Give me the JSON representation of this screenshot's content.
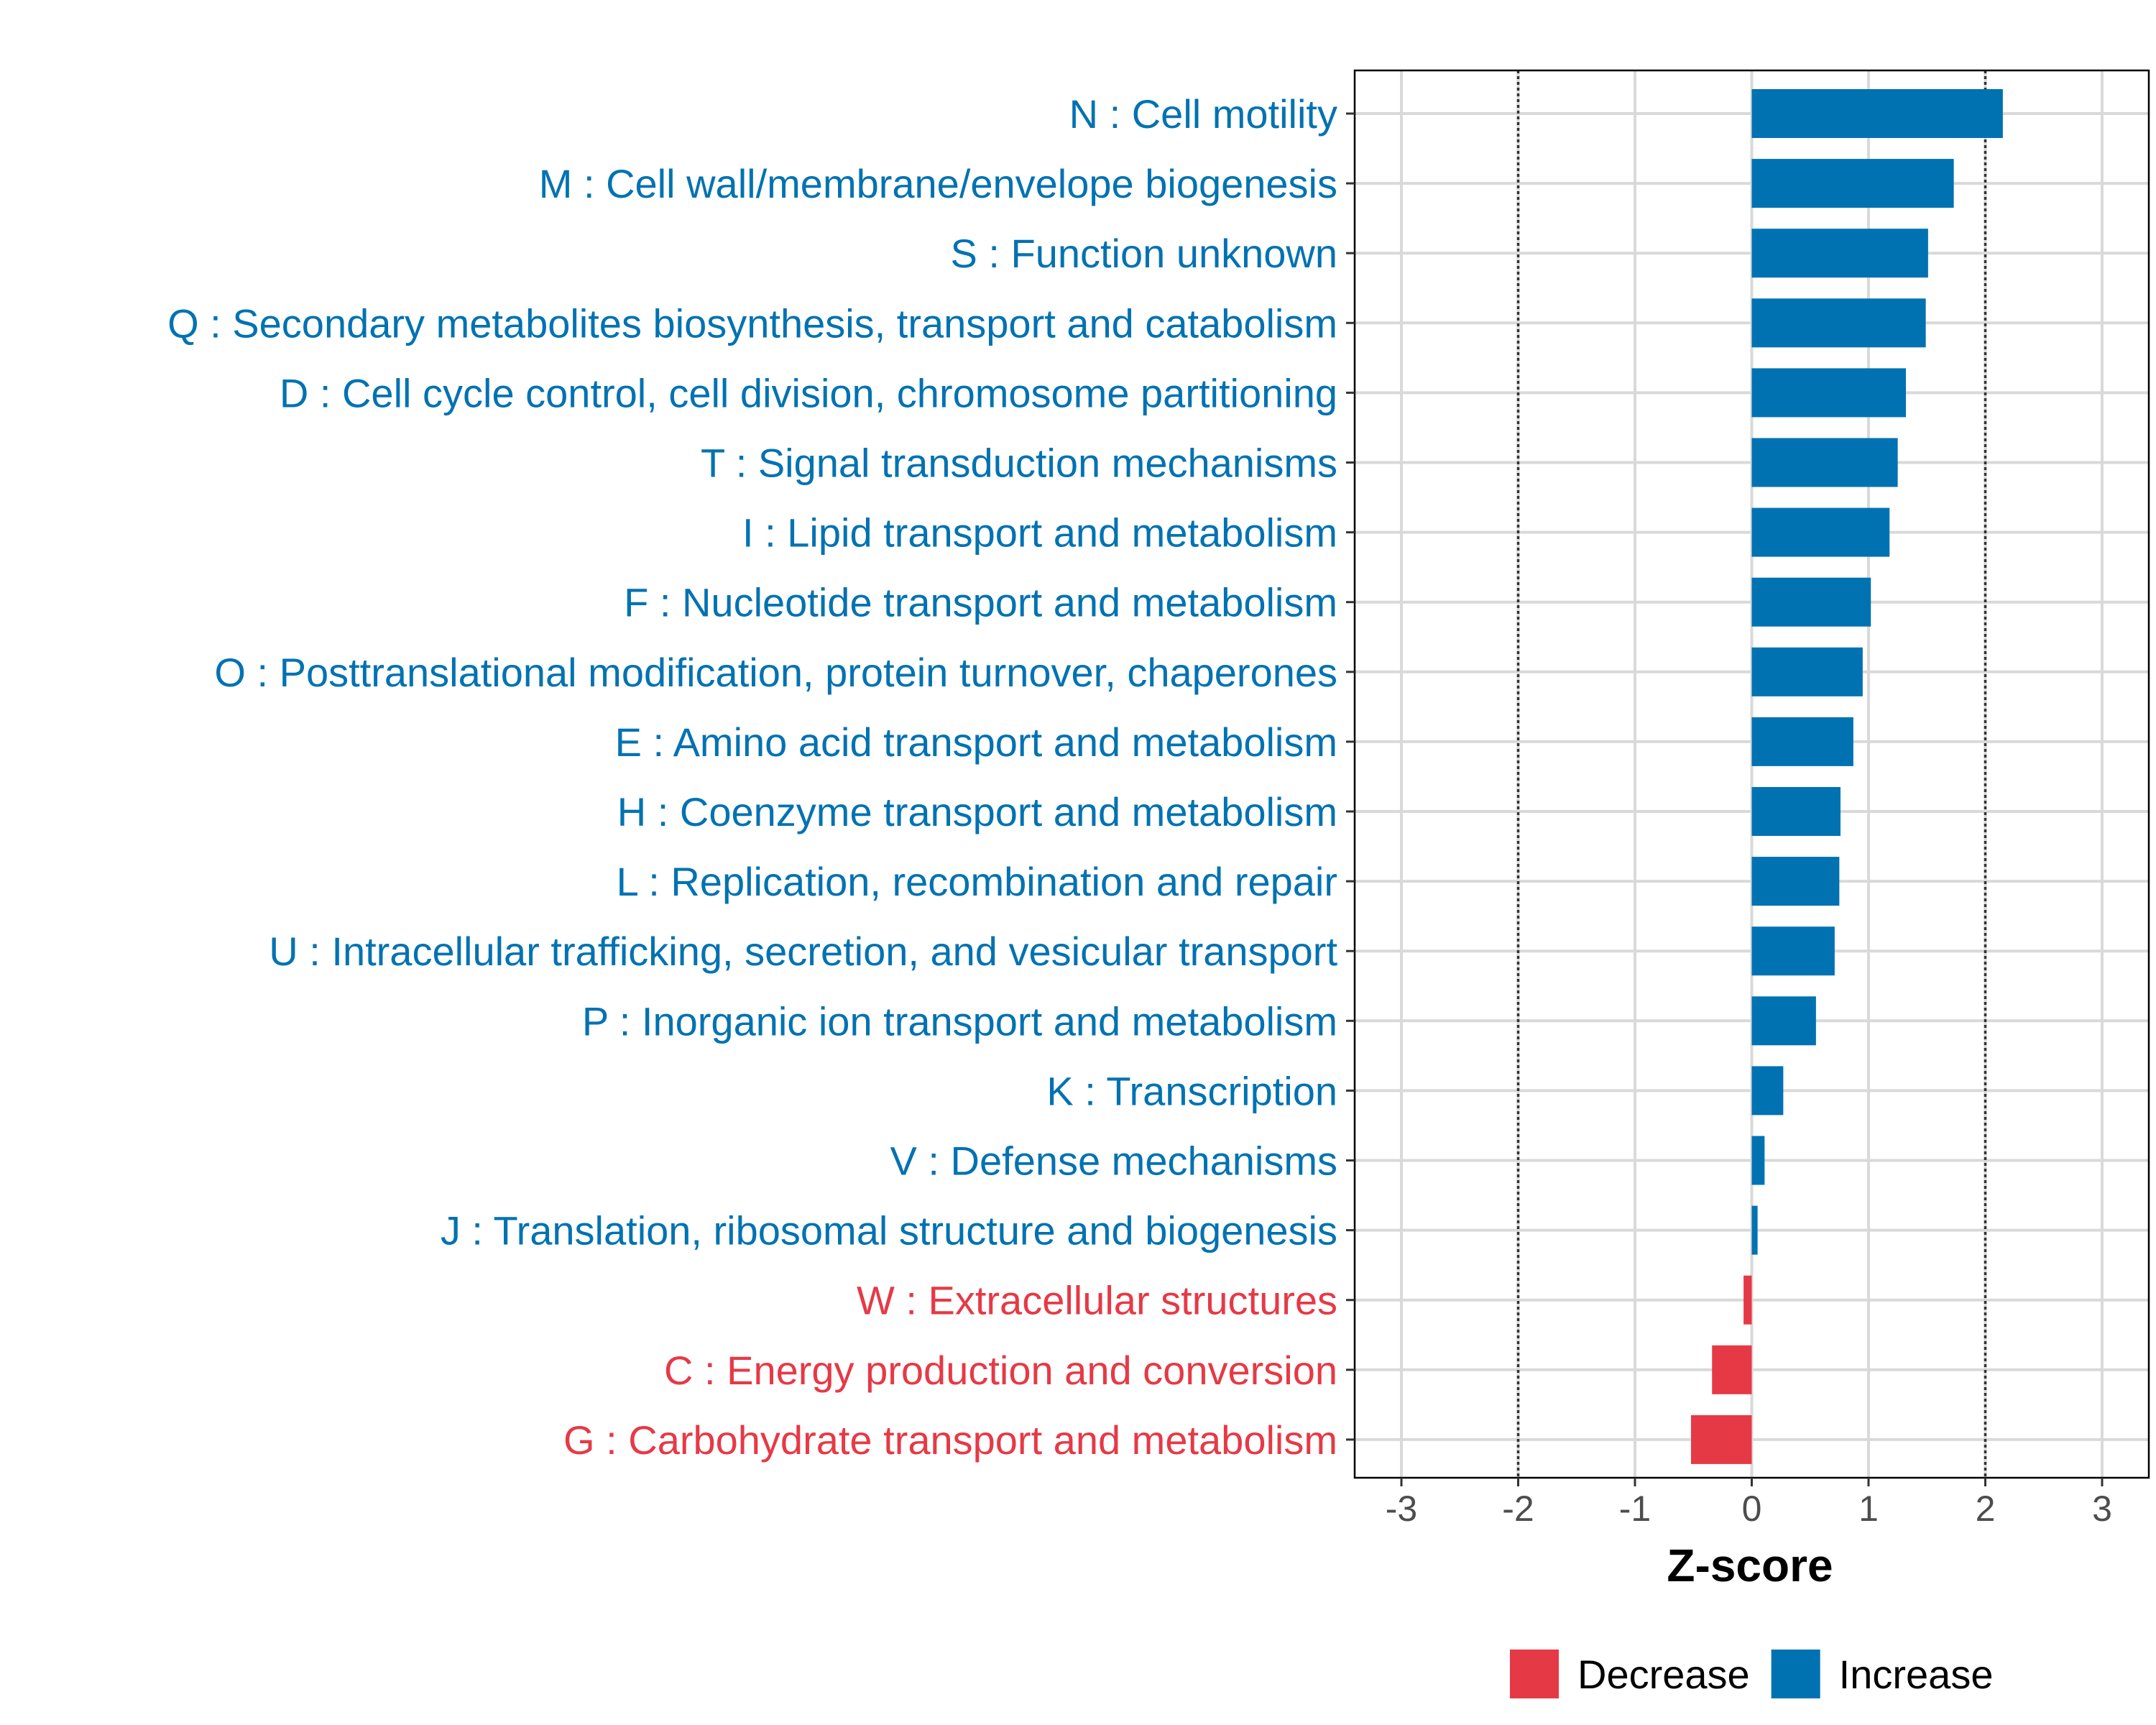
{
  "chart_data": {
    "type": "bar",
    "orientation": "horizontal",
    "xlabel": "Z-score",
    "xlim": [
      -3.4,
      3.4
    ],
    "xticks": [
      -3,
      -2,
      -1,
      0,
      1,
      2,
      3
    ],
    "xtick_labels": [
      "-3",
      "-2",
      "-1",
      "0",
      "1",
      "2",
      "3"
    ],
    "reference_lines": [
      -2,
      2
    ],
    "grid": true,
    "colors": {
      "Increase": "#0072B2",
      "Decrease": "#E63946"
    },
    "categories": [
      "N : Cell motility",
      "M : Cell wall/membrane/envelope biogenesis",
      "S : Function unknown",
      "Q : Secondary metabolites biosynthesis, transport and catabolism",
      "D : Cell cycle control, cell division, chromosome partitioning",
      "T : Signal transduction mechanisms",
      "I : Lipid transport and metabolism",
      "F : Nucleotide transport and metabolism",
      "O : Posttranslational modification, protein turnover, chaperones",
      "E : Amino acid transport and metabolism",
      "H : Coenzyme transport and metabolism",
      "L : Replication, recombination and repair",
      "U : Intracellular trafficking, secretion, and vesicular transport",
      "P : Inorganic ion transport and metabolism",
      "K : Transcription",
      "V : Defense mechanisms",
      "J : Translation, ribosomal structure and biogenesis",
      "W : Extracellular structures",
      "C : Energy production and conversion",
      "G : Carbohydrate transport and metabolism"
    ],
    "values": [
      2.15,
      1.73,
      1.51,
      1.49,
      1.32,
      1.25,
      1.18,
      1.02,
      0.95,
      0.87,
      0.76,
      0.75,
      0.71,
      0.55,
      0.27,
      0.11,
      0.05,
      -0.07,
      -0.34,
      -0.52
    ],
    "groups": [
      "Increase",
      "Increase",
      "Increase",
      "Increase",
      "Increase",
      "Increase",
      "Increase",
      "Increase",
      "Increase",
      "Increase",
      "Increase",
      "Increase",
      "Increase",
      "Increase",
      "Increase",
      "Increase",
      "Increase",
      "Decrease",
      "Decrease",
      "Decrease"
    ],
    "legend": {
      "position": "bottom",
      "entries": [
        {
          "label": "Decrease",
          "group": "Decrease"
        },
        {
          "label": "Increase",
          "group": "Increase"
        }
      ]
    }
  }
}
